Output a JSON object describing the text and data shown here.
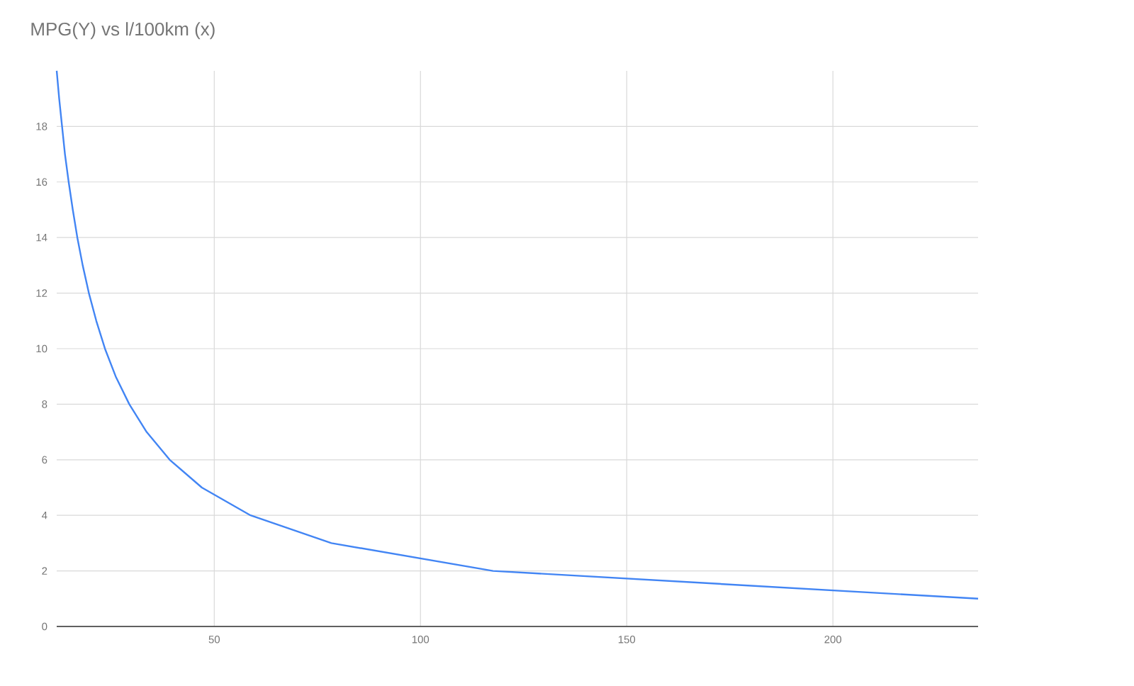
{
  "chart_data": {
    "type": "line",
    "title": "MPG(Y) vs l/100km (x)",
    "x": [
      11.8,
      12.4,
      13.1,
      13.8,
      14.7,
      15.7,
      16.8,
      18.1,
      19.6,
      21.4,
      23.5,
      26.1,
      29.4,
      33.6,
      39.2,
      47.0,
      58.8,
      78.4,
      117.6,
      235.2
    ],
    "series": [
      {
        "color": "#4285f4",
        "values": [
          20,
          19,
          18,
          17,
          16,
          15,
          14,
          13,
          12,
          11,
          10,
          9,
          8,
          7,
          6,
          5,
          4,
          3,
          2,
          1
        ]
      }
    ],
    "xlim": [
      11.8,
      235.2
    ],
    "ylim": [
      0,
      20
    ],
    "xticks": [
      50,
      100,
      150,
      200
    ],
    "yticks": [
      0,
      2,
      4,
      6,
      8,
      10,
      12,
      14,
      16,
      18
    ],
    "grid": true,
    "marker": "none",
    "line_style": "solid"
  }
}
